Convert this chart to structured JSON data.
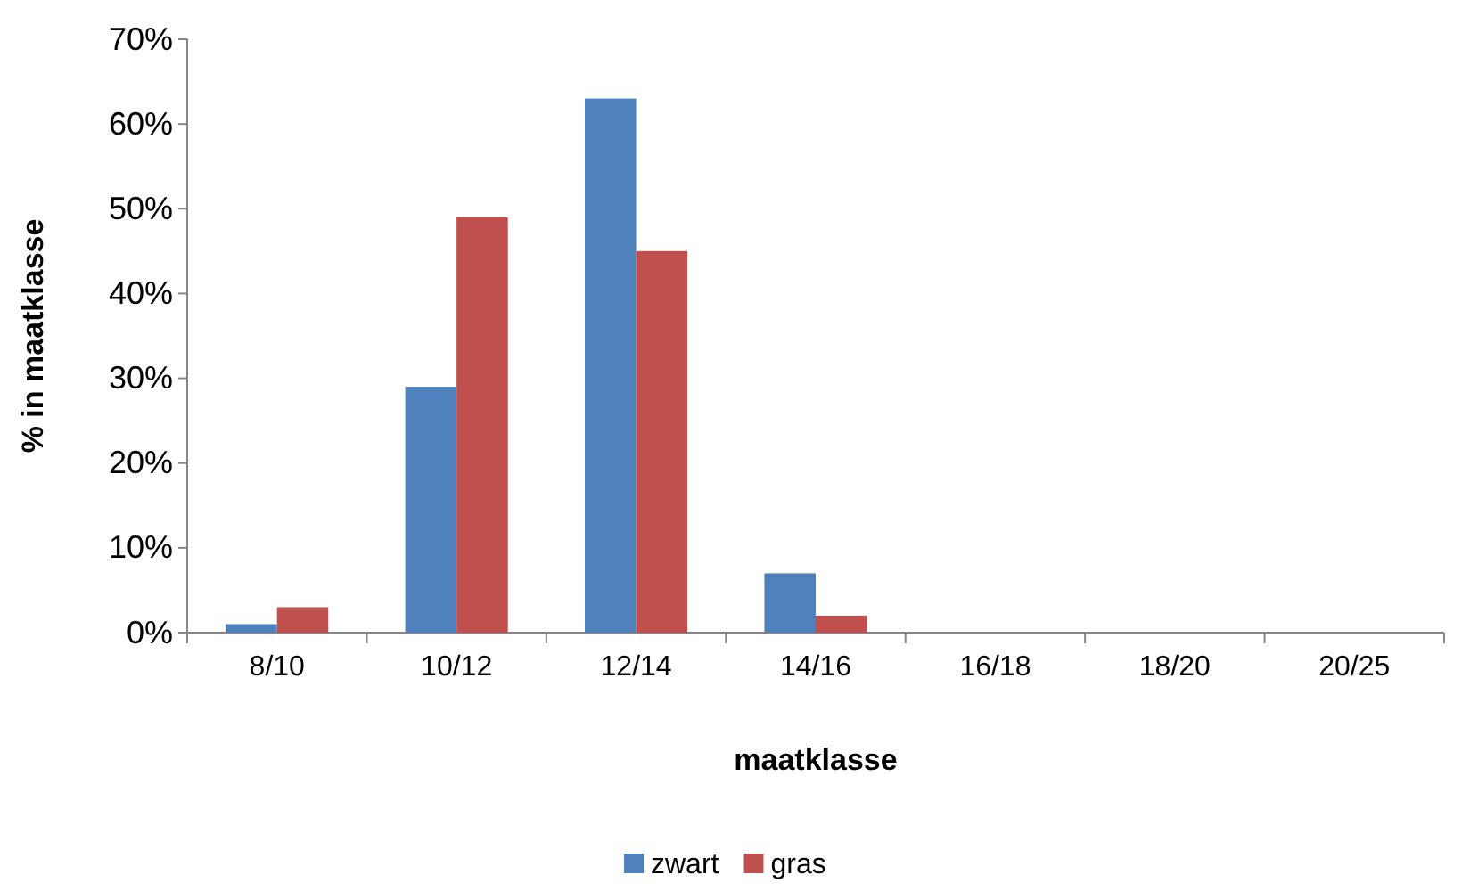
{
  "chart_data": {
    "type": "bar",
    "xlabel": "maatklasse",
    "ylabel": "% in maatklasse",
    "categories": [
      "8/10",
      "10/12",
      "12/14",
      "14/16",
      "16/18",
      "18/20",
      "20/25"
    ],
    "series": [
      {
        "name": "zwart",
        "color": "#4f81bd",
        "values": [
          1,
          29,
          63,
          7,
          0,
          0,
          0
        ]
      },
      {
        "name": "gras",
        "color": "#c0504d",
        "values": [
          3,
          49,
          45,
          2,
          0,
          0,
          0
        ]
      }
    ],
    "ylim": [
      0,
      70
    ],
    "yticks": [
      {
        "value": 0,
        "label": "0%"
      },
      {
        "value": 10,
        "label": "10%"
      },
      {
        "value": 20,
        "label": "20%"
      },
      {
        "value": 30,
        "label": "30%"
      },
      {
        "value": 40,
        "label": "40%"
      },
      {
        "value": 50,
        "label": "50%"
      },
      {
        "value": 60,
        "label": "60%"
      },
      {
        "value": 70,
        "label": "70%"
      }
    ],
    "grid": false,
    "legend": "bottom"
  }
}
